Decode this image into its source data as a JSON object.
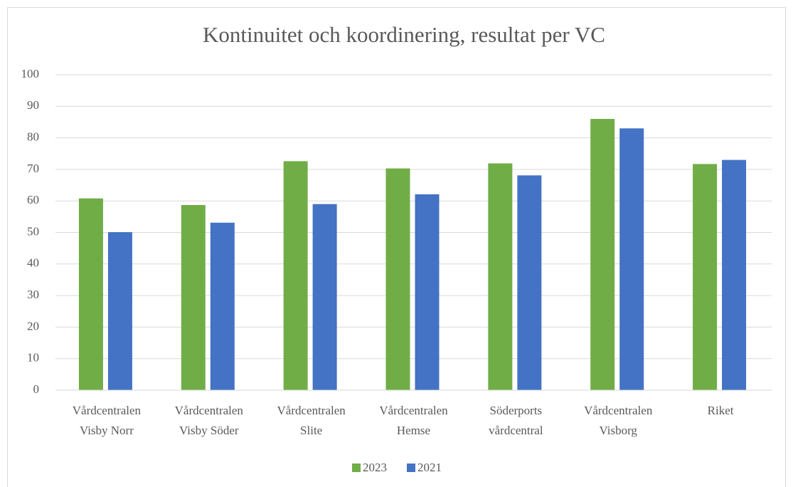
{
  "chart_data": {
    "type": "bar",
    "title": "Kontinuitet och koordinering, resultat per VC",
    "categories": [
      "Vårdcentralen Visby Norr",
      "Vårdcentralen Visby Söder",
      "Vårdcentralen Slite",
      "Vårdcentralen Hemse",
      "Söderports vårdcentral",
      "Vårdcentralen Visborg",
      "Riket"
    ],
    "series": [
      {
        "name": "2023",
        "color": "#70ad47",
        "values": [
          60.8,
          58.7,
          72.6,
          70.3,
          71.9,
          86,
          71.7
        ]
      },
      {
        "name": "2021",
        "color": "#4472c4",
        "values": [
          50.1,
          53.1,
          59,
          62.1,
          68.1,
          83,
          73
        ]
      }
    ],
    "ylim": [
      0,
      100
    ],
    "yticks": [
      0,
      10,
      20,
      30,
      40,
      50,
      60,
      70,
      80,
      90,
      100
    ],
    "grid": true,
    "legend": "bottom"
  }
}
